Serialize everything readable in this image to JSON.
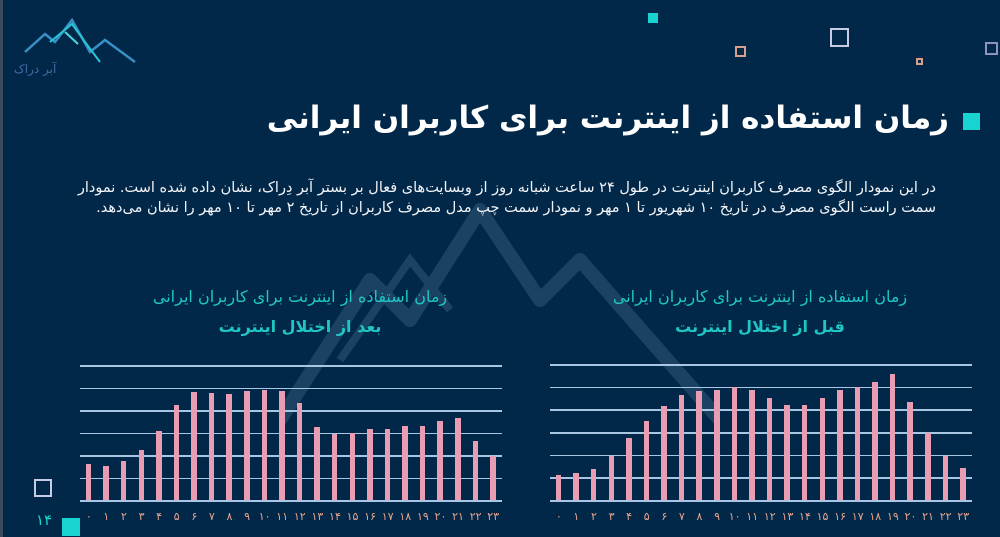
{
  "brand": {
    "logo_text": "آبر دراک",
    "logo_icon": "mountain-logo-icon"
  },
  "colors": {
    "background": "#022849",
    "accent": "#19d3d0",
    "bar": "#e99db2",
    "gridline": "#a9c7e3",
    "tick": "#e5a48e",
    "chart_title": "#1fc6c4"
  },
  "header": {
    "title": "زمان استفاده از اینترنت برای کاربران ایرانی"
  },
  "description": "در این نمودار الگوی مصرف کاربران اینترنت در طول ۲۴ ساعت شبانه روز از وبسایت‌های فعال بر بستر آبر دِراک، نشان داده شده است. نمودار سمت راست الگوی مصرف در تاریخ ۱۰ شهریور تا ۱ مهر و نمودار سمت چپ مدل مصرف کاربران از تاریخ ۲ مهر تا ۱۰ مهر را نشان می‌دهد.",
  "charts": {
    "right": {
      "title": "زمان استفاده از اینترنت برای کاربران ایرانی",
      "subtitle": "قبل از اختلال اینترنت"
    },
    "left": {
      "title": "زمان استفاده از اینترنت برای کاربران ایرانی",
      "subtitle": "بعد از اختلال اینترنت"
    }
  },
  "x_tick_labels": [
    "۰",
    "۱",
    "۲",
    "۳",
    "۴",
    "۵",
    "۶",
    "۷",
    "۸",
    "۹",
    "۱۰",
    "۱۱",
    "۱۲",
    "۱۳",
    "۱۴",
    "۱۵",
    "۱۶",
    "۱۷",
    "۱۸",
    "۱۹",
    "۲۰",
    "۲۱",
    "۲۲",
    "۲۳"
  ],
  "footer": {
    "page_number": "۱۴"
  },
  "chart_data": [
    {
      "type": "bar",
      "title": "زمان استفاده از اینترنت برای کاربران ایرانی",
      "subtitle": "قبل از اختلال اینترنت",
      "position": "right",
      "xlabel": "",
      "ylabel": "",
      "categories": [
        "0",
        "1",
        "2",
        "3",
        "4",
        "5",
        "6",
        "7",
        "8",
        "9",
        "10",
        "11",
        "12",
        "13",
        "14",
        "15",
        "16",
        "17",
        "18",
        "19",
        "20",
        "21",
        "22",
        "23"
      ],
      "values": [
        1.11,
        1.17,
        1.37,
        1.94,
        2.73,
        3.5,
        4.14,
        4.64,
        4.79,
        4.87,
        4.98,
        4.84,
        4.49,
        4.21,
        4.19,
        4.49,
        4.86,
        4.98,
        5.2,
        5.54,
        4.33,
        2.97,
        1.96,
        1.42
      ],
      "ylim": [
        0,
        6
      ],
      "grid": true,
      "y_ticks_labeled": false,
      "note": "values in gridline units (no y-axis labels shown)"
    },
    {
      "type": "bar",
      "title": "زمان استفاده از اینترنت برای کاربران ایرانی",
      "subtitle": "بعد از اختلال اینترنت",
      "position": "left",
      "xlabel": "",
      "ylabel": "",
      "categories": [
        "0",
        "1",
        "2",
        "3",
        "4",
        "5",
        "6",
        "7",
        "8",
        "9",
        "10",
        "11",
        "12",
        "13",
        "14",
        "15",
        "16",
        "17",
        "18",
        "19",
        "20",
        "21",
        "22",
        "23"
      ],
      "values": [
        1.59,
        1.52,
        1.73,
        2.22,
        3.07,
        4.23,
        4.82,
        4.75,
        4.69,
        4.84,
        4.87,
        4.84,
        4.32,
        3.24,
        2.95,
        2.99,
        3.15,
        3.17,
        3.27,
        3.3,
        3.51,
        3.66,
        2.63,
        1.95
      ],
      "ylim": [
        0,
        6
      ],
      "grid": true,
      "y_ticks_labeled": false,
      "note": "values in gridline units (no y-axis labels shown)"
    }
  ]
}
